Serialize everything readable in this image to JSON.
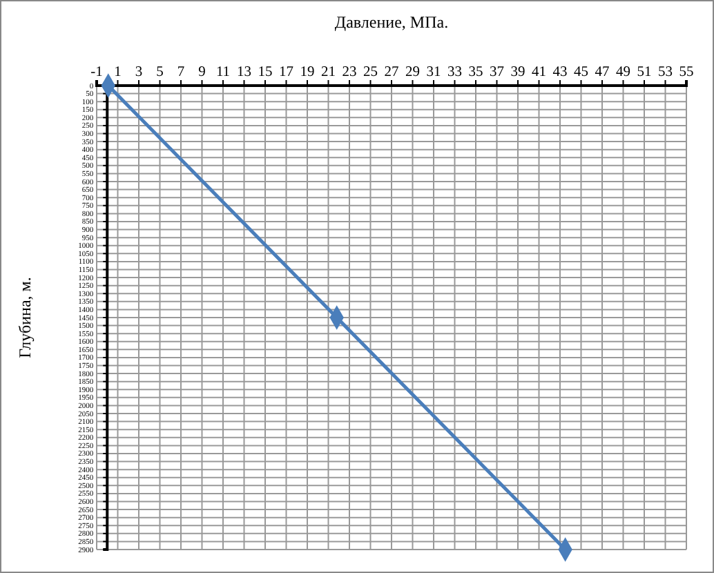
{
  "chart_data": {
    "type": "line",
    "xlabel": "Давление, МПа.",
    "ylabel": "Глубина, м.",
    "x": [
      0.1,
      21.8,
      43.5
    ],
    "series": [
      {
        "color": "#4a7ebb",
        "values": [
          0,
          1450,
          2900
        ]
      }
    ],
    "xlim": [
      -1,
      55
    ],
    "xticks": [
      -1,
      1,
      3,
      5,
      7,
      9,
      11,
      13,
      15,
      17,
      19,
      21,
      23,
      25,
      27,
      29,
      31,
      33,
      35,
      37,
      39,
      41,
      43,
      45,
      47,
      49,
      51,
      53,
      55
    ],
    "ylim": [
      2900,
      0
    ],
    "yticks": [
      0,
      50,
      100,
      150,
      200,
      250,
      300,
      350,
      400,
      450,
      500,
      550,
      600,
      650,
      700,
      750,
      800,
      850,
      900,
      950,
      1000,
      1050,
      1100,
      1150,
      1200,
      1250,
      1300,
      1350,
      1400,
      1450,
      1500,
      1550,
      1600,
      1650,
      1700,
      1750,
      1800,
      1850,
      1900,
      1950,
      2000,
      2050,
      2100,
      2150,
      2200,
      2250,
      2300,
      2350,
      2400,
      2450,
      2500,
      2550,
      2600,
      2650,
      2700,
      2750,
      2800,
      2850,
      2900
    ],
    "grid": true,
    "marker": "diamond",
    "line_style": "solid"
  }
}
